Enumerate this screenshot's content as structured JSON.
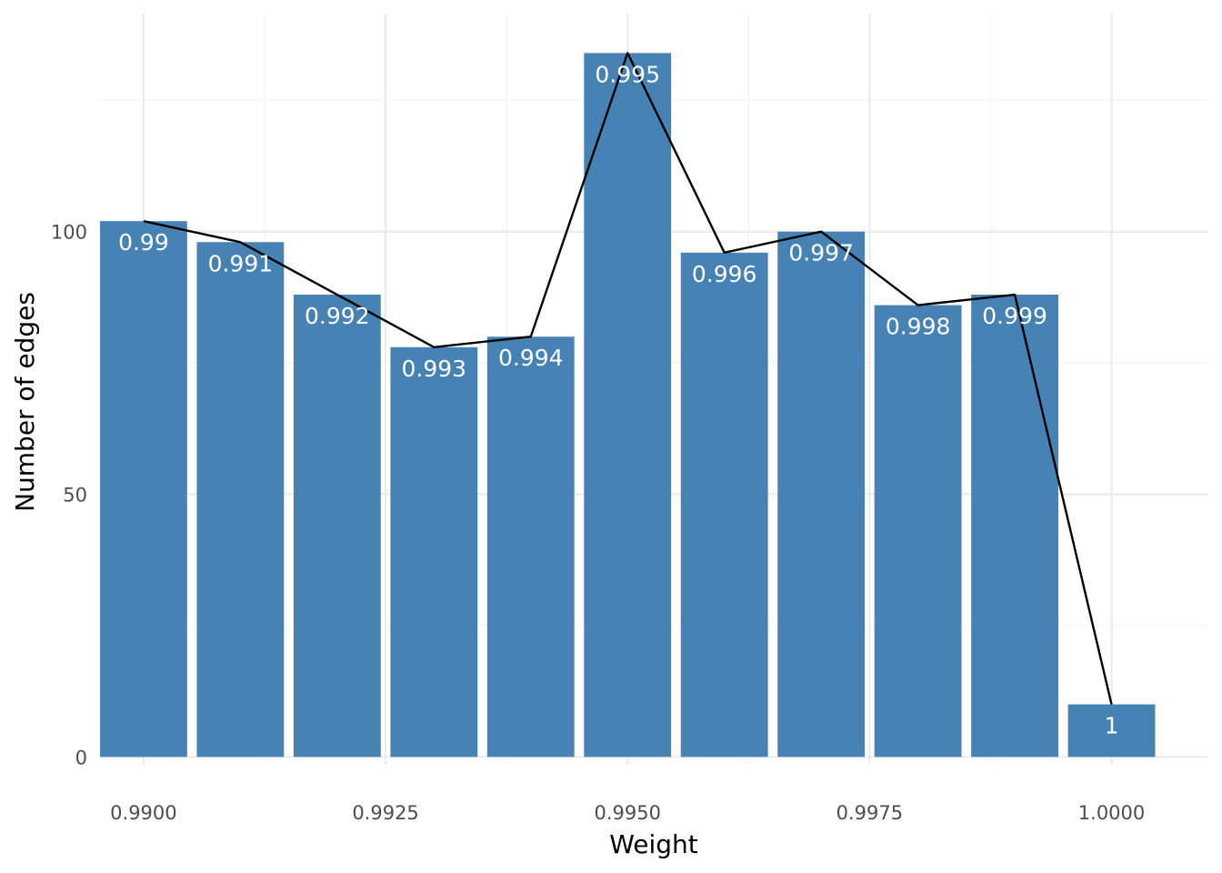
{
  "chart_data": {
    "type": "bar",
    "xlabel": "Weight",
    "ylabel": "Number of edges",
    "xlim": [
      0.98955,
      1.001
    ],
    "ylim": [
      -1.5,
      141.5
    ],
    "x_ticks": [
      0.99,
      0.9925,
      0.995,
      0.9975,
      1.0
    ],
    "x_tick_labels": [
      "0.9900",
      "0.9925",
      "0.9950",
      "0.9975",
      "1.0000"
    ],
    "y_ticks": [
      0,
      50,
      100
    ],
    "y_tick_labels": [
      "0",
      "50",
      "100"
    ],
    "grid": true,
    "bar_width": 0.0009,
    "x": [
      0.99,
      0.991,
      0.992,
      0.993,
      0.994,
      0.995,
      0.996,
      0.997,
      0.998,
      0.999,
      1.0
    ],
    "values": [
      102,
      98,
      88,
      78,
      80,
      134,
      96,
      100,
      86,
      88,
      10
    ],
    "labels": [
      "0.99",
      "0.991",
      "0.992",
      "0.993",
      "0.994",
      "0.995",
      "0.996",
      "0.997",
      "0.998",
      "0.999",
      "1"
    ],
    "line": true,
    "bar_color": "#4682b4",
    "line_color": "#000000",
    "label_color": "#ffffff"
  }
}
